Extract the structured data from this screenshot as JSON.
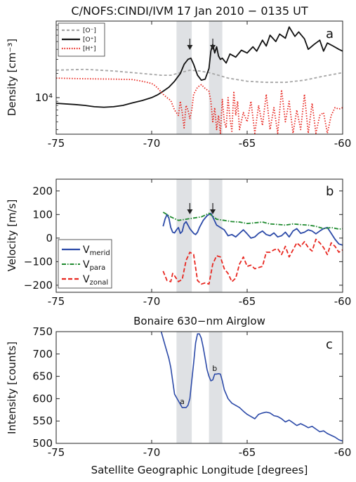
{
  "figure_title": "C/NOFS:CINDI/IVM 17 Jan 2010 − 0135 UT",
  "xlabel": "Satellite Geographic Longitude [degrees]",
  "colors": {
    "O_minus": "#a6a6a6",
    "O_plus": "#111111",
    "H_plus": "#e8261f",
    "merid": "#2c4aa8",
    "para": "#1e8a2e",
    "zonal": "#e8261f",
    "band": "#dfe1e4"
  },
  "chart_data": [
    {
      "type": "line",
      "panel_label": "a",
      "ylabel": "Density [cm⁻³]",
      "yscale": "log",
      "ylim": [
        3500,
        90000
      ],
      "xlim": [
        -75,
        -60
      ],
      "xticks": [
        "-75",
        "-70",
        "-65",
        "-60"
      ],
      "yticks": [
        {
          "value": 10000,
          "label": "10⁴"
        }
      ],
      "legend_position": "top-left",
      "shaded_bands": [
        [
          -68.7,
          -67.9
        ],
        [
          -67.0,
          -66.3
        ]
      ],
      "arrows": [
        -68.0,
        -66.8
      ],
      "series": [
        {
          "name": "[O⁻]",
          "style": "dashed",
          "color_key": "O_minus",
          "x": [
            -75.0,
            -73.5,
            -72.0,
            -71.0,
            -70.0,
            -69.5,
            -69.0,
            -68.5,
            -68.0,
            -67.5,
            -67.0,
            -66.5,
            -66.0,
            -65.0,
            -64.0,
            -63.0,
            -62.0,
            -61.0,
            -60.0
          ],
          "y": [
            22000,
            22500,
            21500,
            20500,
            19500,
            19000,
            19000,
            20500,
            22000,
            21500,
            20500,
            19000,
            17500,
            16000,
            15500,
            15500,
            16500,
            18500,
            20500
          ]
        },
        {
          "name": "[O⁺]",
          "style": "solid",
          "color_key": "O_plus",
          "x": [
            -75.0,
            -74.0,
            -73.5,
            -73.0,
            -72.5,
            -72.0,
            -71.5,
            -71.0,
            -70.5,
            -70.0,
            -69.7,
            -69.4,
            -69.1,
            -68.8,
            -68.5,
            -68.3,
            -68.1,
            -67.95,
            -67.8,
            -67.6,
            -67.4,
            -67.2,
            -67.0,
            -66.9,
            -66.8,
            -66.7,
            -66.6,
            -66.5,
            -66.4,
            -66.3,
            -66.1,
            -65.9,
            -65.6,
            -65.3,
            -65.0,
            -64.7,
            -64.5,
            -64.2,
            -64.0,
            -63.8,
            -63.5,
            -63.3,
            -63.0,
            -62.8,
            -62.5,
            -62.3,
            -62.0,
            -61.8,
            -61.5,
            -61.2,
            -61.0,
            -60.8,
            -60.5,
            -60.2,
            -60.0
          ],
          "y": [
            8500,
            8200,
            8000,
            7700,
            7600,
            7700,
            8000,
            8600,
            9200,
            10000,
            10800,
            12000,
            13500,
            16000,
            20000,
            26000,
            30000,
            31000,
            26000,
            19000,
            16500,
            17000,
            23000,
            38000,
            46000,
            36000,
            43000,
            33000,
            30000,
            31000,
            27000,
            35000,
            32000,
            39000,
            36000,
            43000,
            38000,
            52000,
            44000,
            60000,
            50000,
            62000,
            55000,
            76000,
            58000,
            66000,
            54000,
            40000,
            46000,
            52000,
            38000,
            48000,
            44000,
            40000,
            38000
          ]
        },
        {
          "name": "[H⁺]",
          "style": "dotted",
          "color_key": "H_plus",
          "x": [
            -75.0,
            -73.5,
            -72.0,
            -71.0,
            -70.5,
            -70.0,
            -69.8,
            -69.6,
            -69.4,
            -69.2,
            -69.0,
            -68.8,
            -68.6,
            -68.5,
            -68.4,
            -68.3,
            -68.2,
            -68.1,
            -68.0,
            -67.9,
            -67.8,
            -67.6,
            -67.4,
            -67.2,
            -67.0,
            -66.9,
            -66.8,
            -66.7,
            -66.6,
            -66.5,
            -66.4,
            -66.3,
            -66.2,
            -66.1,
            -66.0,
            -65.9,
            -65.8,
            -65.7,
            -65.6,
            -65.5,
            -65.4,
            -65.2,
            -65.0,
            -64.8,
            -64.6,
            -64.4,
            -64.2,
            -64.0,
            -63.8,
            -63.6,
            -63.4,
            -63.2,
            -63.0,
            -62.8,
            -62.6,
            -62.4,
            -62.2,
            -62.0,
            -61.8,
            -61.6,
            -61.4,
            -61.2,
            -61.0,
            -60.8,
            -60.6,
            -60.4,
            -60.2,
            -60.0
          ],
          "y": [
            17500,
            17200,
            17000,
            16800,
            16000,
            15000,
            14000,
            12500,
            11000,
            10000,
            9200,
            7000,
            6000,
            9000,
            6500,
            4200,
            8000,
            7000,
            5500,
            7000,
            11000,
            13500,
            14500,
            13000,
            12000,
            9000,
            5000,
            7500,
            4000,
            6000,
            3600,
            9500,
            5000,
            4200,
            10000,
            5500,
            3800,
            12000,
            6000,
            9000,
            4000,
            6500,
            5000,
            9000,
            3600,
            8000,
            4500,
            11000,
            4000,
            7500,
            3600,
            12500,
            5000,
            9000,
            3600,
            7000,
            4000,
            11000,
            3600,
            8500,
            3600,
            6000,
            6500,
            3600,
            6000,
            7500,
            7200,
            7500
          ]
        }
      ]
    },
    {
      "type": "line",
      "panel_label": "b",
      "ylabel": "Velocity [m/s]",
      "ylim": [
        -230,
        250
      ],
      "xlim": [
        -75,
        -60
      ],
      "xticks": [
        "-75",
        "-70",
        "-65",
        "-60"
      ],
      "yticks": [
        "200",
        "100",
        "0",
        "−100",
        "−200"
      ],
      "ytick_values": [
        200,
        100,
        0,
        -100,
        -200
      ],
      "legend_position": "bottom-left",
      "shaded_bands": [
        [
          -68.7,
          -67.9
        ],
        [
          -67.0,
          -66.3
        ]
      ],
      "arrows": [
        -68.0,
        -66.8
      ],
      "series": [
        {
          "name": "V",
          "name_sub": "merid",
          "style": "solid",
          "color_key": "merid",
          "x": [
            -69.4,
            -69.3,
            -69.2,
            -69.1,
            -69.0,
            -68.9,
            -68.8,
            -68.7,
            -68.6,
            -68.5,
            -68.4,
            -68.3,
            -68.2,
            -68.1,
            -68.0,
            -67.9,
            -67.8,
            -67.7,
            -67.6,
            -67.5,
            -67.3,
            -67.1,
            -66.9,
            -66.8,
            -66.6,
            -66.4,
            -66.2,
            -66.0,
            -65.8,
            -65.6,
            -65.4,
            -65.2,
            -65.0,
            -64.8,
            -64.6,
            -64.4,
            -64.2,
            -64.0,
            -63.8,
            -63.6,
            -63.4,
            -63.2,
            -63.0,
            -62.8,
            -62.6,
            -62.4,
            -62.2,
            -62.0,
            -61.8,
            -61.6,
            -61.4,
            -61.2,
            -61.0,
            -60.8,
            -60.6,
            -60.4,
            -60.2,
            -60.0
          ],
          "y": [
            50,
            80,
            100,
            85,
            45,
            25,
            22,
            35,
            45,
            20,
            28,
            60,
            70,
            55,
            40,
            30,
            20,
            15,
            25,
            45,
            75,
            95,
            105,
            90,
            55,
            45,
            35,
            10,
            15,
            5,
            20,
            35,
            18,
            0,
            5,
            20,
            30,
            15,
            10,
            22,
            5,
            10,
            25,
            5,
            30,
            40,
            20,
            25,
            35,
            30,
            18,
            30,
            40,
            45,
            20,
            -5,
            -25,
            -30
          ]
        },
        {
          "name": "V",
          "name_sub": "para",
          "style": "dashdot",
          "color_key": "para",
          "x": [
            -69.4,
            -69.0,
            -68.6,
            -68.2,
            -67.8,
            -67.4,
            -67.0,
            -66.6,
            -66.2,
            -65.8,
            -65.4,
            -65.0,
            -64.6,
            -64.2,
            -63.8,
            -63.4,
            -63.0,
            -62.6,
            -62.2,
            -61.8,
            -61.4,
            -61.0,
            -60.6,
            -60.2,
            -60.0
          ],
          "y": [
            110,
            90,
            75,
            80,
            85,
            90,
            105,
            80,
            75,
            70,
            68,
            62,
            65,
            68,
            60,
            58,
            55,
            60,
            57,
            55,
            50,
            40,
            45,
            38,
            40
          ]
        },
        {
          "name": "V",
          "name_sub": "zonal",
          "style": "dashed",
          "color_key": "zonal",
          "x": [
            -69.4,
            -69.2,
            -69.0,
            -68.9,
            -68.8,
            -68.6,
            -68.4,
            -68.2,
            -68.0,
            -67.8,
            -67.6,
            -67.4,
            -67.2,
            -67.0,
            -66.8,
            -66.6,
            -66.4,
            -66.2,
            -66.0,
            -65.8,
            -65.6,
            -65.4,
            -65.2,
            -65.0,
            -64.8,
            -64.6,
            -64.4,
            -64.2,
            -64.0,
            -63.8,
            -63.6,
            -63.4,
            -63.2,
            -63.0,
            -62.8,
            -62.6,
            -62.4,
            -62.2,
            -62.0,
            -61.8,
            -61.6,
            -61.4,
            -61.2,
            -61.0,
            -60.8,
            -60.6,
            -60.4,
            -60.2,
            -60.0
          ],
          "y": [
            -140,
            -180,
            -185,
            -150,
            -160,
            -185,
            -175,
            -95,
            -60,
            -70,
            -180,
            -195,
            -190,
            -195,
            -110,
            -75,
            -80,
            -130,
            -150,
            -185,
            -170,
            -110,
            -80,
            -120,
            -115,
            -130,
            -125,
            -120,
            -60,
            -60,
            -50,
            -45,
            -70,
            -35,
            -80,
            -50,
            -20,
            -35,
            -15,
            -40,
            -55,
            -5,
            -20,
            -40,
            -70,
            -20,
            -35,
            -60,
            -50
          ]
        }
      ]
    },
    {
      "type": "line",
      "panel_label": "c",
      "title": "Bonaire 630−nm Airglow",
      "ylabel": "Intensity [counts]",
      "ylim": [
        500,
        750
      ],
      "xlim": [
        -75,
        -60
      ],
      "xticks": [
        "-75",
        "-70",
        "-65",
        "-60"
      ],
      "yticks": [
        "750",
        "700",
        "650",
        "600",
        "550",
        "500"
      ],
      "ytick_values": [
        750,
        700,
        650,
        600,
        550,
        500
      ],
      "shaded_bands": [
        [
          -68.7,
          -67.9
        ],
        [
          -67.0,
          -66.3
        ]
      ],
      "annotations": [
        {
          "x": -68.4,
          "y": 588,
          "text": "a"
        },
        {
          "x": -66.7,
          "y": 662,
          "text": "b"
        }
      ],
      "series": [
        {
          "color_key": "merid",
          "x": [
            -69.5,
            -69.3,
            -69.1,
            -69.0,
            -68.9,
            -68.8,
            -68.6,
            -68.4,
            -68.2,
            -68.1,
            -68.0,
            -67.9,
            -67.8,
            -67.7,
            -67.6,
            -67.5,
            -67.4,
            -67.3,
            -67.2,
            -67.1,
            -67.0,
            -66.9,
            -66.8,
            -66.7,
            -66.6,
            -66.5,
            -66.4,
            -66.3,
            -66.2,
            -66.1,
            -66.0,
            -65.9,
            -65.8,
            -65.6,
            -65.4,
            -65.2,
            -65.0,
            -64.8,
            -64.6,
            -64.4,
            -64.2,
            -64.0,
            -63.8,
            -63.6,
            -63.4,
            -63.2,
            -63.0,
            -62.8,
            -62.6,
            -62.4,
            -62.2,
            -62.0,
            -61.8,
            -61.6,
            -61.4,
            -61.2,
            -61.0,
            -60.8,
            -60.6,
            -60.4,
            -60.2,
            -60.0
          ],
          "y": [
            750,
            720,
            690,
            670,
            640,
            610,
            595,
            580,
            580,
            585,
            600,
            640,
            680,
            725,
            745,
            745,
            735,
            715,
            690,
            665,
            650,
            640,
            642,
            655,
            655,
            656,
            655,
            640,
            620,
            610,
            600,
            595,
            590,
            585,
            580,
            572,
            565,
            560,
            555,
            565,
            568,
            570,
            568,
            562,
            560,
            555,
            548,
            552,
            546,
            540,
            544,
            540,
            535,
            538,
            532,
            526,
            528,
            522,
            518,
            514,
            508,
            505
          ]
        }
      ]
    }
  ]
}
